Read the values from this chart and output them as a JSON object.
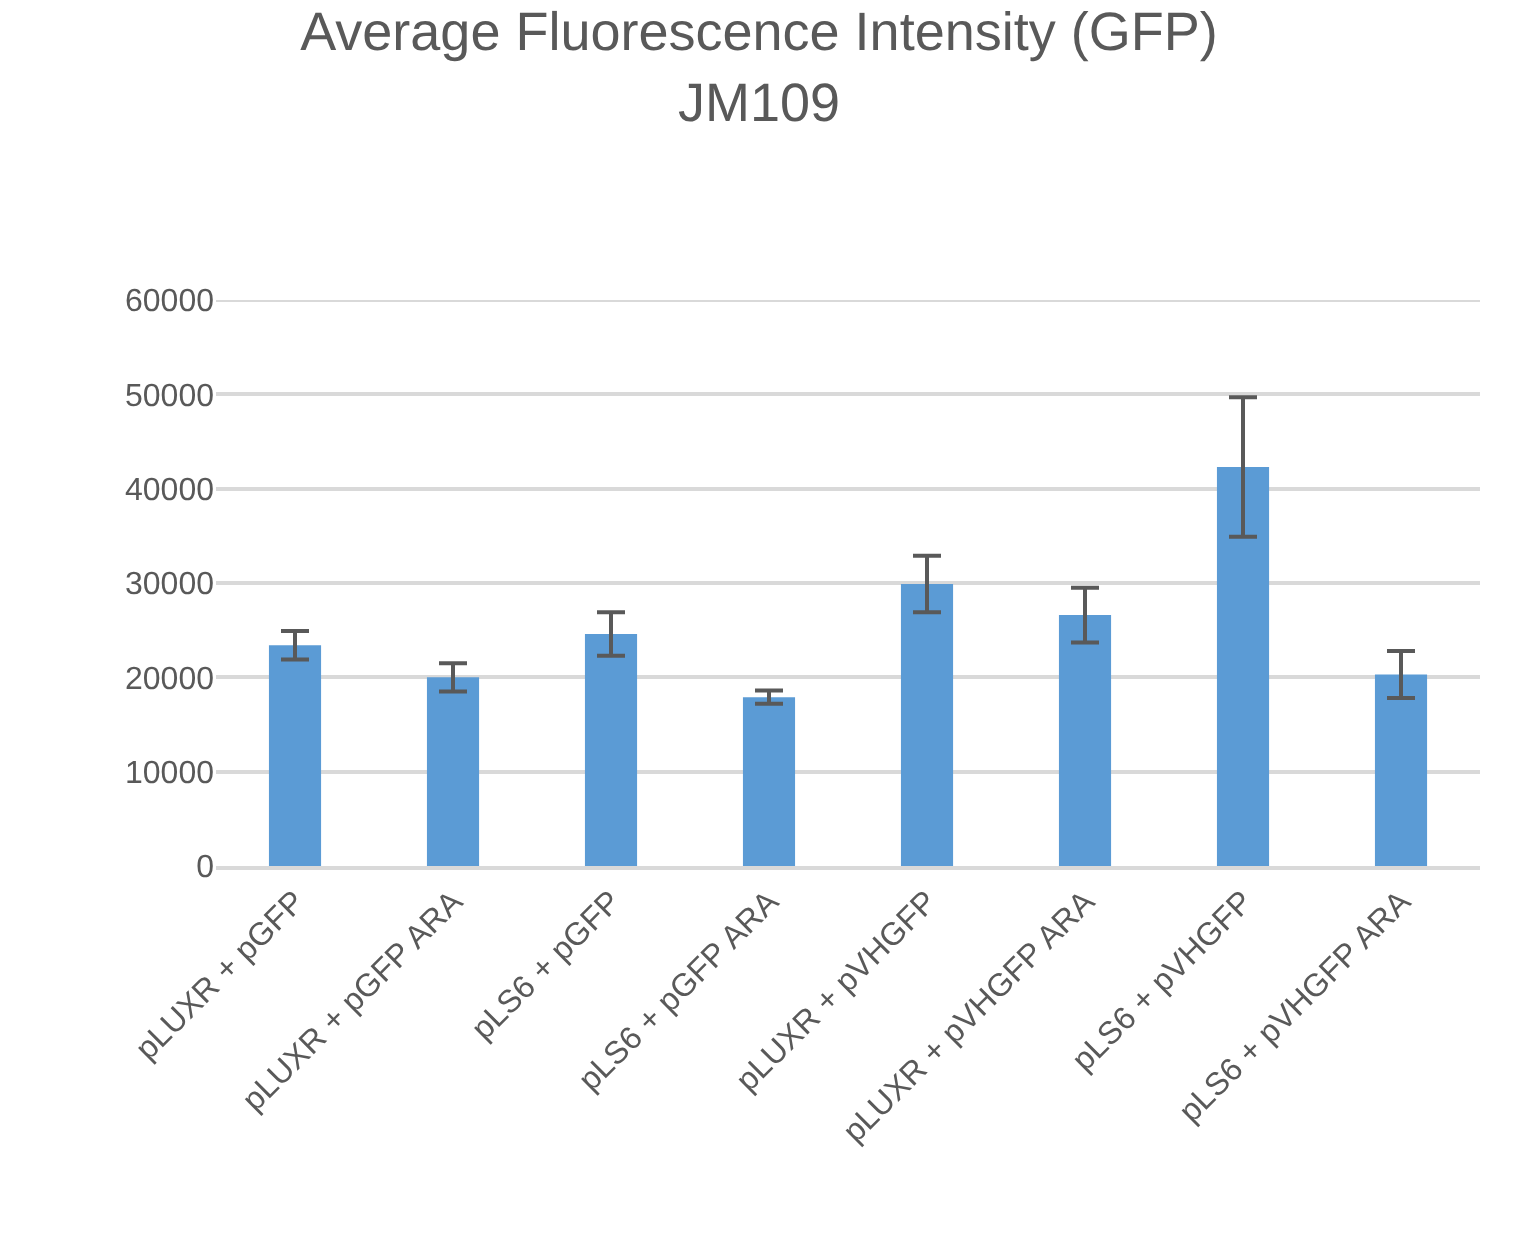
{
  "chart_data": {
    "type": "bar",
    "title": "Average Fluorescence Intensity (GFP)\nJM109",
    "categories": [
      "pLUXR + pGFP",
      "pLUXR + pGFP ARA",
      "pLS6 + pGFP",
      "pLS6 + pGFP ARA",
      "pLUXR + pVHGFP",
      "pLUXR + pVHGFP ARA",
      "pLS6 + pVHGFP",
      "pLS6 + pVHGFP ARA"
    ],
    "values": [
      23400,
      20000,
      24600,
      17900,
      29900,
      26600,
      42300,
      20300
    ],
    "errors": [
      1500,
      1500,
      2300,
      700,
      3000,
      2900,
      7400,
      2500
    ],
    "color": "#5b9bd5",
    "ylim": [
      0,
      60000
    ],
    "yticks": [
      0,
      10000,
      20000,
      30000,
      40000,
      50000,
      60000
    ],
    "grid": "y"
  }
}
